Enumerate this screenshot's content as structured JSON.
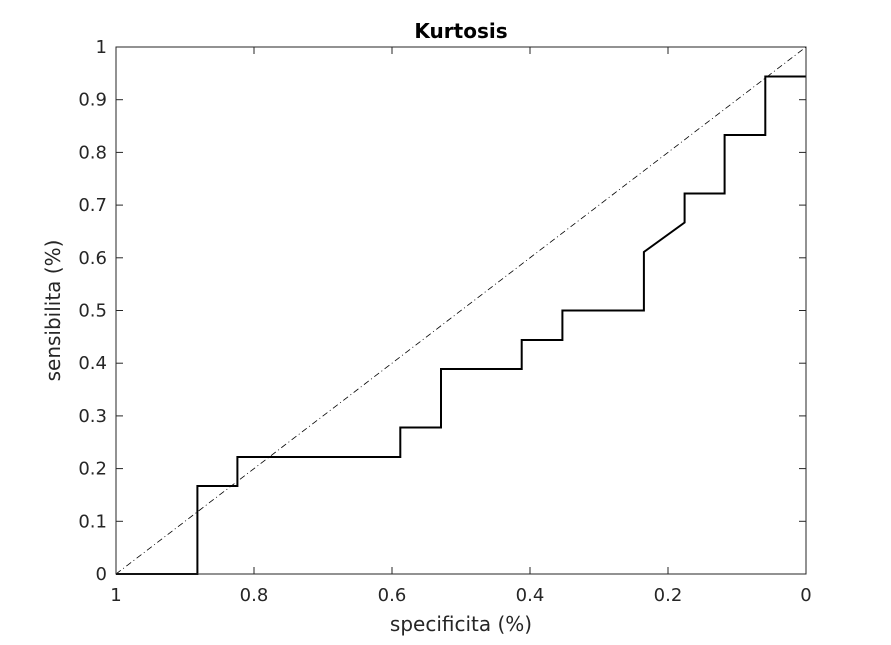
{
  "chart_data": {
    "type": "line",
    "title": "Kurtosis",
    "xlabel": "specificita (%)",
    "ylabel": "sensibilita (%)",
    "xlim": [
      1,
      0
    ],
    "ylim": [
      0,
      1
    ],
    "x_reversed": true,
    "grid": false,
    "box": true,
    "x_ticks": [
      1,
      0.8,
      0.6,
      0.4,
      0.2,
      0
    ],
    "x_tick_labels": [
      "1",
      "0.8",
      "0.6",
      "0.4",
      "0.2",
      "0"
    ],
    "y_ticks": [
      0,
      0.1,
      0.2,
      0.3,
      0.4,
      0.5,
      0.6,
      0.7,
      0.8,
      0.9,
      1
    ],
    "y_tick_labels": [
      "0",
      "0.1",
      "0.2",
      "0.3",
      "0.4",
      "0.5",
      "0.6",
      "0.7",
      "0.8",
      "0.9",
      "1"
    ],
    "series": [
      {
        "style": "solid",
        "color": "#000000",
        "x": [
          1,
          0.882,
          0.882,
          0.824,
          0.824,
          0.588,
          0.588,
          0.529,
          0.529,
          0.412,
          0.412,
          0.353,
          0.353,
          0.235,
          0.235,
          0.176,
          0.176,
          0.118,
          0.118,
          0.059,
          0.059,
          0
        ],
        "y": [
          0,
          0,
          0.167,
          0.167,
          0.222,
          0.222,
          0.278,
          0.278,
          0.389,
          0.389,
          0.444,
          0.444,
          0.5,
          0.5,
          0.611,
          0.667,
          0.722,
          0.722,
          0.833,
          0.833,
          0.944,
          0.944
        ]
      },
      {
        "style": "dash-dot",
        "color": "#000000",
        "x": [
          1,
          0
        ],
        "y": [
          0,
          1
        ]
      }
    ]
  }
}
